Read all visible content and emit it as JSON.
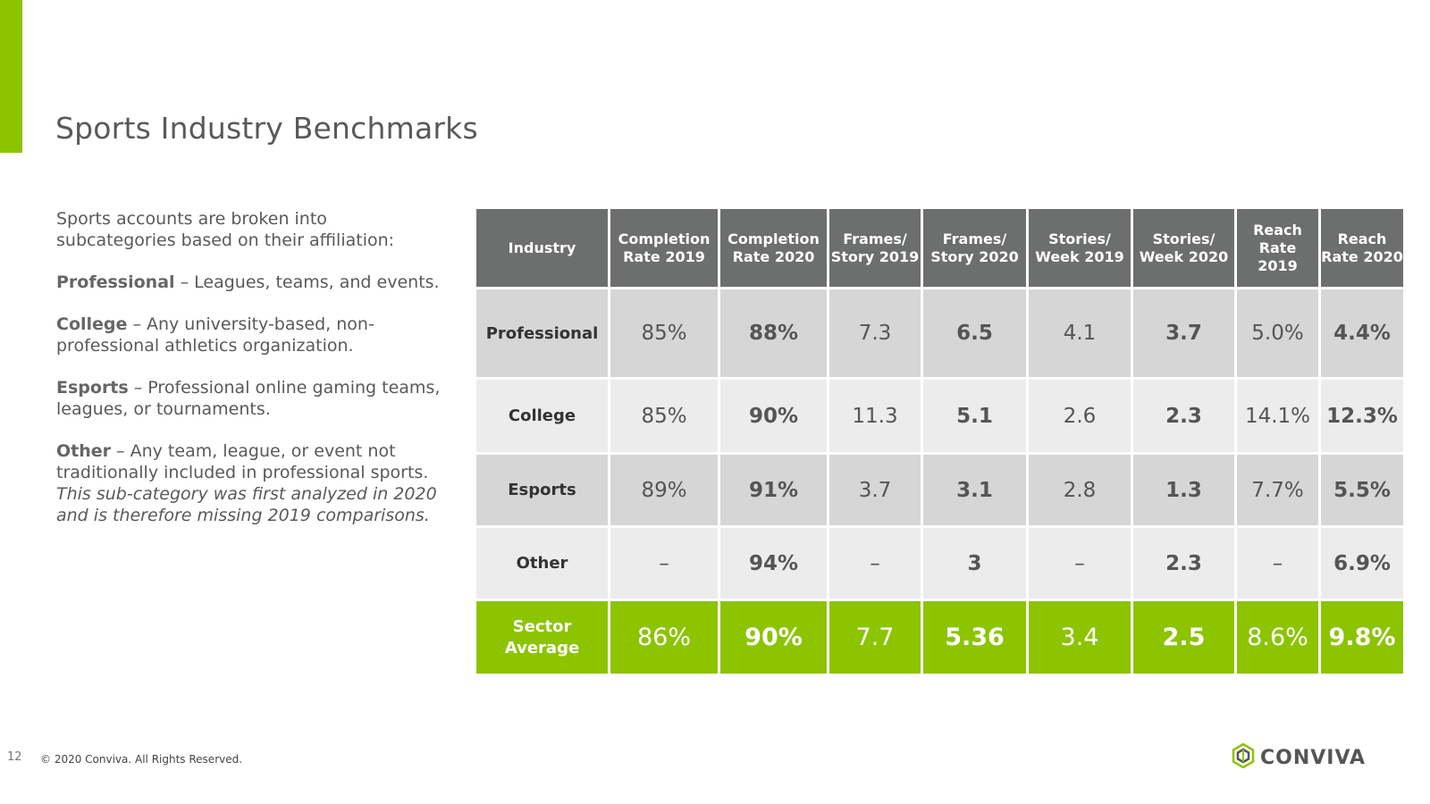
{
  "slide": {
    "title": "Sports Industry Benchmarks",
    "page_number": "12",
    "copyright": "© 2020 Conviva. All Rights Reserved.",
    "brand_name": "CONVIVA",
    "accent_color": "#8cc400",
    "header_color": "#6d6e6e"
  },
  "description": {
    "intro": "Sports accounts are broken into subcategories based on their affiliation:",
    "items": [
      {
        "term": "Professional",
        "text": " – Leagues, teams, and events."
      },
      {
        "term": "College",
        "text": " – Any university-based, non-professional athletics organization."
      },
      {
        "term": "Esports",
        "text": "  – Professional online gaming teams, leagues, or tournaments."
      },
      {
        "term": "Other",
        "text": " – Any team, league, or event not traditionally included in professional sports. ",
        "note": "This sub-category was first analyzed in 2020 and is therefore missing 2019 comparisons."
      }
    ]
  },
  "table": {
    "headers": [
      "Industry",
      "Completion Rate 2019",
      "Completion Rate 2020",
      "Frames/ Story 2019",
      "Frames/ Story 2020",
      "Stories/ Week 2019",
      "Stories/ Week 2020",
      "Reach Rate 2019",
      "Reach Rate 2020"
    ],
    "rows": [
      {
        "industry": "Professional",
        "values": [
          "85%",
          "88%",
          "7.3",
          "6.5",
          "4.1",
          "3.7",
          "5.0%",
          "4.4%"
        ]
      },
      {
        "industry": "College",
        "values": [
          "85%",
          "90%",
          "11.3",
          "5.1",
          "2.6",
          "2.3",
          "14.1%",
          "12.3%"
        ]
      },
      {
        "industry": "Esports",
        "values": [
          "89%",
          "91%",
          "3.7",
          "3.1",
          "2.8",
          "1.3",
          "7.7%",
          "5.5%"
        ]
      },
      {
        "industry": "Other",
        "values": [
          "–",
          "94%",
          "–",
          "3",
          "–",
          "2.3",
          "–",
          "6.9%"
        ]
      }
    ],
    "average": {
      "industry": "Sector Average",
      "values": [
        "86%",
        "90%",
        "7.7",
        "5.36",
        "3.4",
        "2.5",
        "8.6%",
        "9.8%"
      ]
    }
  }
}
